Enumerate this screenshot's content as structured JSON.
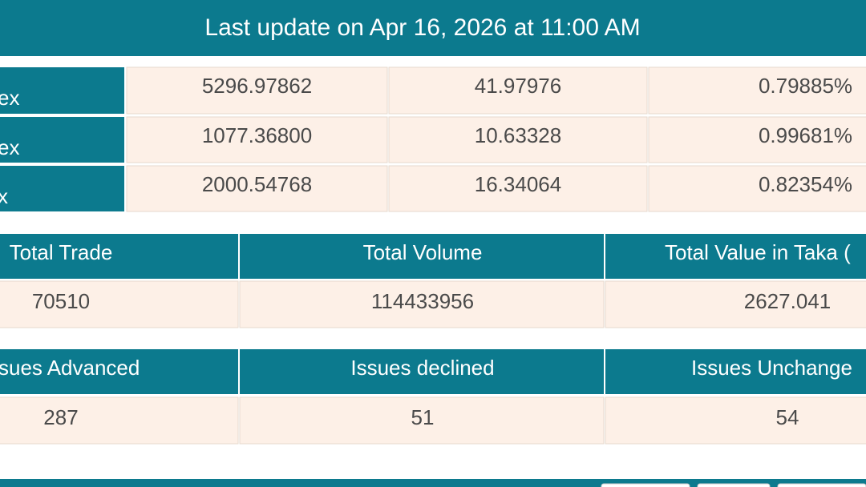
{
  "header": {
    "title": "Last update on Apr 16, 2026 at 11:00 AM"
  },
  "index_table": {
    "rows": [
      [
        "ex",
        "5296.97862",
        "41.97976",
        "0.79885%"
      ],
      [
        "ex",
        "1077.36800",
        "10.63328",
        "0.99681%"
      ],
      [
        "x",
        "2000.54768",
        "16.34064",
        "0.82354%"
      ]
    ]
  },
  "trade_table": {
    "headers": [
      "Total Trade",
      "Total Volume",
      "Total Value in Taka ("
    ],
    "rows": [
      [
        "70510",
        "114433956",
        "2627.041"
      ]
    ]
  },
  "issues_table": {
    "headers": [
      "sues Advanced",
      "Issues declined",
      "Issues Unchange"
    ],
    "rows": [
      [
        "287",
        "51",
        "54"
      ]
    ]
  }
}
